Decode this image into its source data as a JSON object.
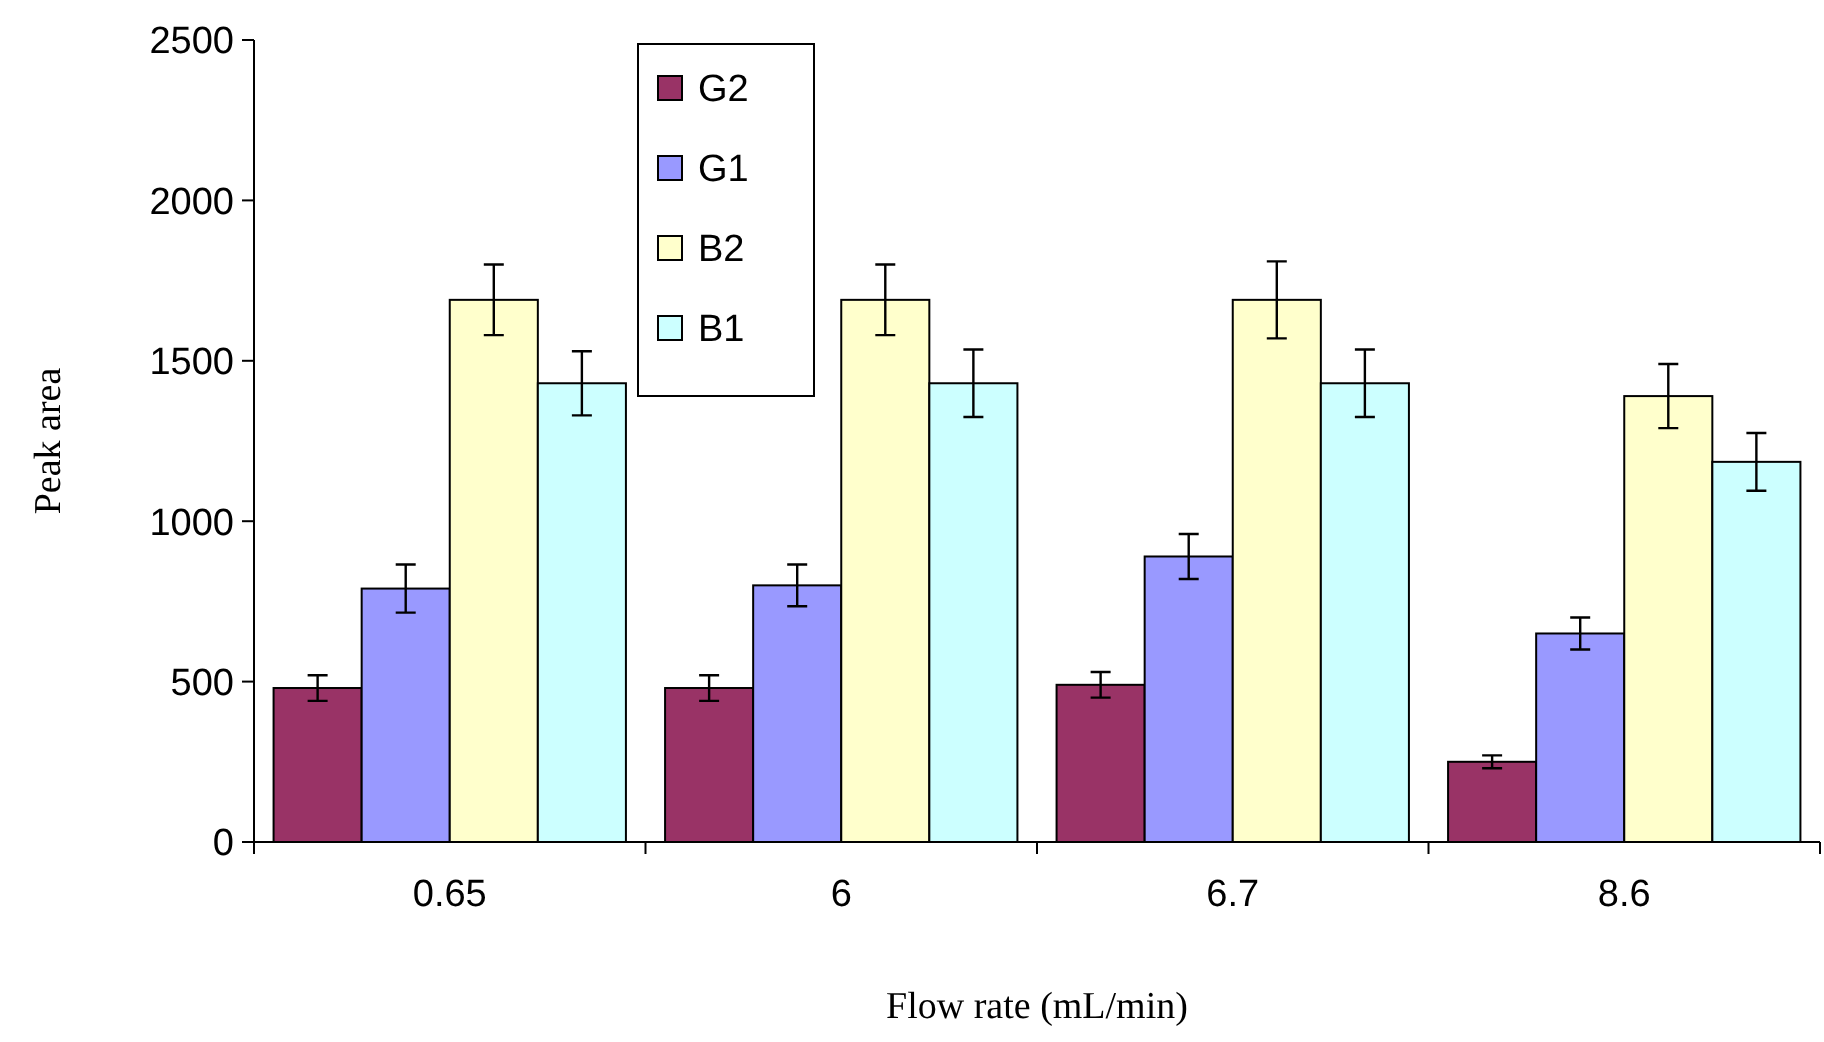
{
  "chart_data": {
    "type": "bar",
    "xlabel": "Flow rate (mL/min)",
    "ylabel": "Peak area",
    "categories": [
      "0.65",
      "6",
      "6.7",
      "8.6"
    ],
    "series": [
      {
        "name": "G2",
        "color": "#993366",
        "values": [
          480,
          480,
          490,
          250
        ],
        "errors": [
          40,
          40,
          40,
          20
        ]
      },
      {
        "name": "G1",
        "color": "#9999ff",
        "values": [
          790,
          800,
          890,
          650
        ],
        "errors": [
          75,
          65,
          70,
          50
        ]
      },
      {
        "name": "B2",
        "color": "#ffffcc",
        "values": [
          1690,
          1690,
          1690,
          1390
        ],
        "errors": [
          110,
          110,
          120,
          100
        ]
      },
      {
        "name": "B1",
        "color": "#ccffff",
        "values": [
          1430,
          1430,
          1430,
          1185
        ],
        "errors": [
          100,
          105,
          105,
          90
        ]
      }
    ],
    "ylim": [
      0,
      2500
    ],
    "yticks": [
      0,
      500,
      1000,
      1500,
      2000,
      2500
    ],
    "grid": false,
    "legend": "top left"
  }
}
